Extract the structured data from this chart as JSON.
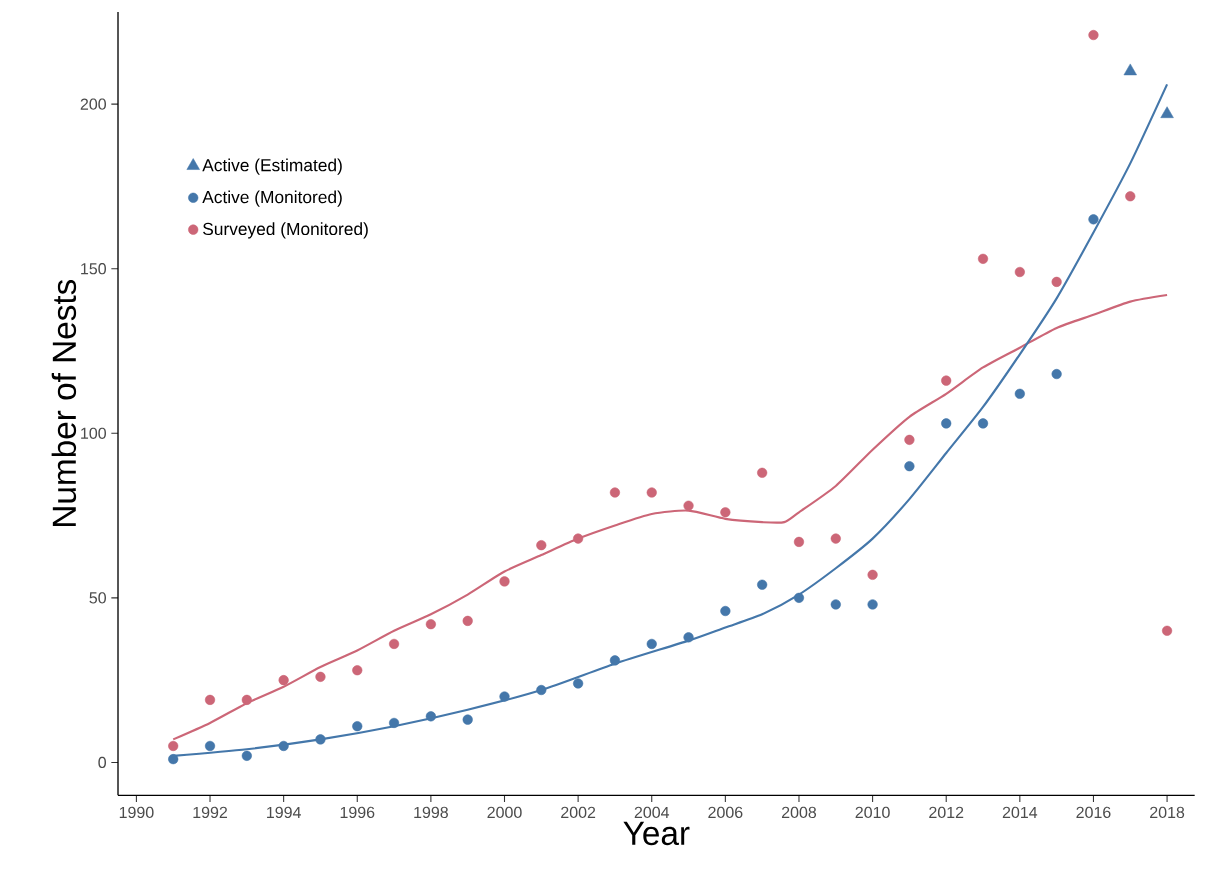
{
  "chart_data": {
    "type": "scatter",
    "xlabel": "Year",
    "ylabel": "Number of Nests",
    "xlim": [
      1989.5,
      2018.75
    ],
    "ylim": [
      -10,
      228
    ],
    "xticks": [
      1990,
      1992,
      1994,
      1996,
      1998,
      2000,
      2002,
      2004,
      2006,
      2008,
      2010,
      2012,
      2014,
      2016,
      2018
    ],
    "yticks": [
      0,
      50,
      100,
      150,
      200
    ],
    "legend": "top left",
    "series": [
      {
        "type": "line",
        "marker": "none",
        "line_style": "solid",
        "color": "#cc6677",
        "x": [
          1991,
          1992,
          1993,
          1994,
          1995,
          1996,
          1997,
          1998,
          1999,
          2000,
          2001,
          2002,
          2003,
          2004,
          2005,
          2006,
          2007,
          2007.6,
          2008,
          2009,
          2010,
          2011,
          2012,
          2013,
          2014,
          2015,
          2016,
          2017,
          2018
        ],
        "values": [
          7,
          12,
          18,
          23,
          29,
          34,
          40,
          45,
          51,
          58,
          63,
          68,
          72,
          75.5,
          76.5,
          74,
          73,
          73,
          76,
          84,
          95,
          105,
          112,
          120,
          126,
          132,
          136,
          140,
          142
        ]
      },
      {
        "type": "line",
        "marker": "none",
        "line_style": "solid",
        "color": "#4477aa",
        "x": [
          1991,
          1993,
          1995,
          1997,
          1999,
          2001,
          2003,
          2005,
          2006,
          2007,
          2008,
          2009,
          2010,
          2011,
          2012,
          2013,
          2014,
          2015,
          2016,
          2017,
          2018
        ],
        "values": [
          2,
          4,
          7,
          11,
          16,
          22,
          30,
          37,
          41,
          45,
          51,
          59,
          68,
          80,
          94,
          108,
          124,
          141,
          161,
          182,
          206
        ]
      },
      {
        "name": "Active (Estimated)",
        "type": "scatter",
        "marker": "triangle",
        "color": "#4477aa",
        "x": [
          2017,
          2018
        ],
        "values": [
          210,
          197
        ]
      },
      {
        "name": "Active (Monitored)",
        "type": "scatter",
        "marker": "circle",
        "color": "#4477aa",
        "x": [
          1991,
          1992,
          1993,
          1994,
          1995,
          1996,
          1997,
          1998,
          1999,
          2000,
          2001,
          2002,
          2003,
          2004,
          2005,
          2006,
          2007,
          2008,
          2009,
          2010,
          2011,
          2012,
          2013,
          2014,
          2015,
          2016
        ],
        "values": [
          1,
          5,
          2,
          5,
          7,
          11,
          12,
          14,
          13,
          20,
          22,
          24,
          31,
          36,
          38,
          46,
          54,
          50,
          48,
          48,
          90,
          103,
          103,
          112,
          118,
          165
        ]
      },
      {
        "name": "Surveyed (Monitored)",
        "type": "scatter",
        "marker": "circle",
        "color": "#cc6677",
        "x": [
          1991,
          1992,
          1993,
          1994,
          1995,
          1996,
          1997,
          1998,
          1999,
          2000,
          2001,
          2002,
          2003,
          2004,
          2005,
          2006,
          2007,
          2008,
          2009,
          2010,
          2011,
          2012,
          2013,
          2014,
          2015,
          2016,
          2017,
          2018
        ],
        "values": [
          5,
          19,
          19,
          25,
          26,
          28,
          36,
          42,
          43,
          55,
          66,
          68,
          82,
          82,
          78,
          76,
          88,
          67,
          68,
          57,
          98,
          116,
          153,
          149,
          146,
          221,
          172,
          40
        ]
      }
    ]
  }
}
